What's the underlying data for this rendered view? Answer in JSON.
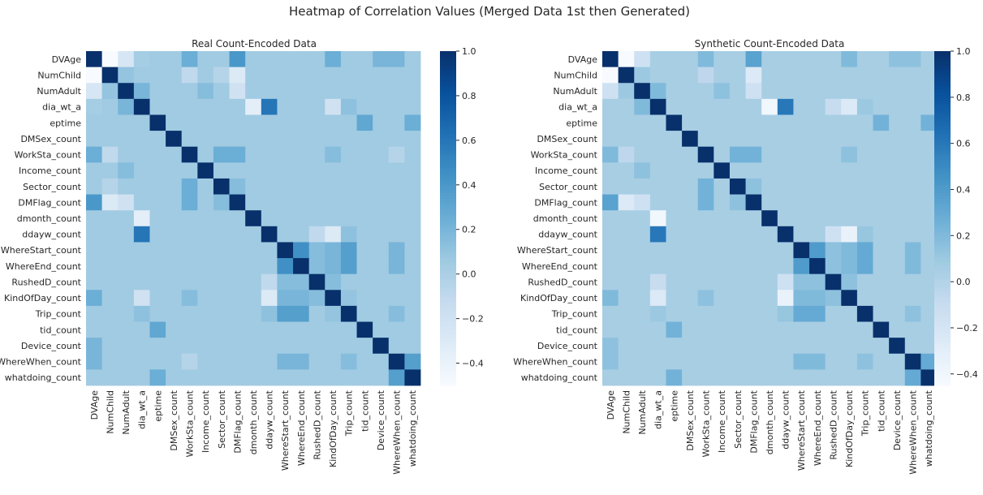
{
  "suptitle": "Heatmap of Correlation Values (Merged Data 1st then Generated)",
  "chart_data": [
    {
      "type": "heatmap",
      "title": "Real Count-Encoded Data",
      "cmap": "Blues",
      "vmin": -0.5,
      "vmax": 1.0,
      "colorbar_ticks": [
        1.0,
        0.8,
        0.6,
        0.4,
        0.2,
        0.0,
        -0.2,
        -0.4
      ],
      "colorbar_tick_labels": [
        "1.0",
        "0.8",
        "0.6",
        "0.4",
        "0.2",
        "0.0",
        "−0.2",
        "−0.4"
      ],
      "labels": [
        "DVAge",
        "NumChild",
        "NumAdult",
        "dia_wt_a",
        "eptime",
        "DMSex_count",
        "WorkSta_count",
        "Income_count",
        "Sector_count",
        "DMFlag_count",
        "dmonth_count",
        "ddayw_count",
        "WhereStart_count",
        "WhereEnd_count",
        "RushedD_count",
        "KindOfDay_count",
        "Trip_count",
        "tid_count",
        "Device_count",
        "WhereWhen_count",
        "whatdoing_count"
      ],
      "base": 0.05,
      "diagonal": 1.0,
      "pairs": [
        [
          0,
          1,
          -0.5
        ],
        [
          0,
          2,
          -0.25
        ],
        [
          0,
          6,
          0.25
        ],
        [
          0,
          9,
          0.4
        ],
        [
          0,
          15,
          0.25
        ],
        [
          0,
          18,
          0.2
        ],
        [
          0,
          19,
          0.2
        ],
        [
          0,
          3,
          0.03
        ],
        [
          0,
          4,
          0.05
        ],
        [
          1,
          2,
          0.1
        ],
        [
          1,
          6,
          -0.1
        ],
        [
          1,
          9,
          -0.3
        ],
        [
          1,
          8,
          -0.05
        ],
        [
          2,
          3,
          0.2
        ],
        [
          2,
          7,
          0.15
        ],
        [
          2,
          9,
          -0.2
        ],
        [
          3,
          10,
          -0.35
        ],
        [
          3,
          11,
          0.6
        ],
        [
          3,
          15,
          -0.2
        ],
        [
          3,
          16,
          0.12
        ],
        [
          4,
          17,
          0.3
        ],
        [
          4,
          20,
          0.25
        ],
        [
          6,
          8,
          0.25
        ],
        [
          6,
          9,
          0.25
        ],
        [
          6,
          15,
          0.15
        ],
        [
          6,
          19,
          -0.05
        ],
        [
          8,
          9,
          0.15
        ],
        [
          11,
          14,
          -0.1
        ],
        [
          11,
          15,
          -0.3
        ],
        [
          11,
          16,
          0.12
        ],
        [
          12,
          13,
          0.45
        ],
        [
          12,
          14,
          0.15
        ],
        [
          12,
          15,
          0.2
        ],
        [
          12,
          16,
          0.35
        ],
        [
          12,
          19,
          0.2
        ],
        [
          13,
          14,
          0.15
        ],
        [
          13,
          15,
          0.2
        ],
        [
          13,
          16,
          0.35
        ],
        [
          13,
          19,
          0.2
        ],
        [
          14,
          15,
          0.15
        ],
        [
          15,
          16,
          0.1
        ],
        [
          16,
          19,
          0.15
        ],
        [
          19,
          20,
          0.35
        ]
      ]
    },
    {
      "type": "heatmap",
      "title": "Synthetic Count-Encoded Data",
      "cmap": "Blues",
      "vmin": -0.45,
      "vmax": 1.0,
      "colorbar_ticks": [
        1.0,
        0.8,
        0.6,
        0.4,
        0.2,
        0.0,
        -0.2,
        -0.4
      ],
      "colorbar_tick_labels": [
        "1.0",
        "0.8",
        "0.6",
        "0.4",
        "0.2",
        "0.0",
        "−0.2",
        "−0.4"
      ],
      "labels": [
        "DVAge",
        "NumChild",
        "NumAdult",
        "dia_wt_a",
        "eptime",
        "DMSex_count",
        "WorkSta_count",
        "Income_count",
        "Sector_count",
        "DMFlag_count",
        "dmonth_count",
        "ddayw_count",
        "WhereStart_count",
        "WhereEnd_count",
        "RushedD_count",
        "KindOfDay_count",
        "Trip_count",
        "tid_count",
        "Device_count",
        "WhereWhen_count",
        "whatdoing_count"
      ],
      "base": 0.05,
      "diagonal": 1.0,
      "pairs": [
        [
          0,
          1,
          -0.45
        ],
        [
          0,
          2,
          -0.15
        ],
        [
          0,
          6,
          0.2
        ],
        [
          0,
          9,
          0.35
        ],
        [
          0,
          15,
          0.2
        ],
        [
          0,
          18,
          0.15
        ],
        [
          0,
          19,
          0.15
        ],
        [
          1,
          2,
          0.1
        ],
        [
          1,
          6,
          -0.05
        ],
        [
          1,
          9,
          -0.25
        ],
        [
          2,
          3,
          0.2
        ],
        [
          2,
          7,
          0.15
        ],
        [
          2,
          9,
          -0.15
        ],
        [
          3,
          10,
          -0.4
        ],
        [
          3,
          11,
          0.6
        ],
        [
          3,
          15,
          -0.25
        ],
        [
          3,
          14,
          -0.1
        ],
        [
          3,
          16,
          0.1
        ],
        [
          4,
          17,
          0.25
        ],
        [
          4,
          20,
          0.25
        ],
        [
          6,
          8,
          0.25
        ],
        [
          6,
          9,
          0.25
        ],
        [
          6,
          15,
          0.15
        ],
        [
          8,
          9,
          0.15
        ],
        [
          11,
          14,
          -0.15
        ],
        [
          11,
          15,
          -0.35
        ],
        [
          11,
          16,
          0.12
        ],
        [
          12,
          13,
          0.4
        ],
        [
          12,
          14,
          0.15
        ],
        [
          12,
          15,
          0.2
        ],
        [
          12,
          16,
          0.3
        ],
        [
          12,
          19,
          0.2
        ],
        [
          13,
          14,
          0.15
        ],
        [
          13,
          15,
          0.2
        ],
        [
          13,
          16,
          0.3
        ],
        [
          13,
          19,
          0.2
        ],
        [
          14,
          15,
          0.15
        ],
        [
          16,
          19,
          0.15
        ],
        [
          19,
          20,
          0.3
        ]
      ]
    }
  ]
}
